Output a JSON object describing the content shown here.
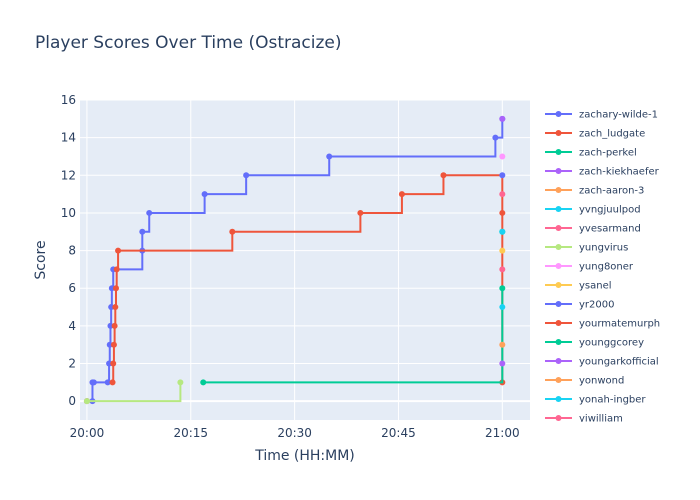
{
  "chart_data": {
    "type": "line",
    "line_shape": "step",
    "title": "Player Scores Over Time (Ostracize)",
    "xlabel": "Time (HH:MM)",
    "ylabel": "Score",
    "x_ticks": [
      "20:00",
      "20:15",
      "20:30",
      "20:45",
      "21:00"
    ],
    "x_tick_values": [
      0,
      15,
      30,
      45,
      60
    ],
    "xlim": [
      -1,
      64
    ],
    "y_ticks": [
      0,
      2,
      4,
      6,
      8,
      10,
      12,
      14,
      16
    ],
    "ylim": [
      -1,
      16
    ],
    "grid": true,
    "legend_position": "right",
    "series": [
      {
        "name": "zachary-wilde-1",
        "color": "#636efa",
        "x": [
          0,
          0.8,
          0.8,
          1.0,
          3.0,
          3.2,
          3.3,
          3.4,
          3.5,
          3.6,
          3.8,
          8.0,
          8.0,
          9.0,
          17.0,
          23.0,
          35.0,
          59.0,
          60.0
        ],
        "y": [
          0,
          0,
          1,
          1,
          1,
          2,
          3,
          4,
          5,
          6,
          7,
          8,
          9,
          10,
          11,
          12,
          13,
          14,
          15
        ]
      },
      {
        "name": "zach_ludgate",
        "color": "#ef553b",
        "x": [
          3.7,
          3.8,
          3.9,
          4.0,
          4.1,
          4.2,
          4.3,
          4.5,
          21.0,
          39.5,
          45.5,
          51.5,
          60.0
        ],
        "y": [
          1,
          2,
          3,
          4,
          5,
          6,
          7,
          8,
          9,
          10,
          11,
          12,
          1
        ]
      },
      {
        "name": "zach-perkel",
        "color": "#00cc96",
        "x": [
          60
        ],
        "y": [
          9
        ]
      },
      {
        "name": "zach-kiekhaefer",
        "color": "#ab63fa",
        "x": [
          60
        ],
        "y": [
          15
        ]
      },
      {
        "name": "zach-aaron-3",
        "color": "#ffa15a",
        "x": [
          0
        ],
        "y": [
          0
        ]
      },
      {
        "name": "yvngjuulpod",
        "color": "#19d3f3",
        "x": [
          60
        ],
        "y": [
          9
        ]
      },
      {
        "name": "yvesarmand",
        "color": "#ff6692",
        "x": [
          60
        ],
        "y": [
          11
        ]
      },
      {
        "name": "yungvirus",
        "color": "#b6e880",
        "x": [
          0,
          13.5
        ],
        "y": [
          0,
          1
        ]
      },
      {
        "name": "yung8oner",
        "color": "#ff97ff",
        "x": [
          60
        ],
        "y": [
          13
        ]
      },
      {
        "name": "ysanel",
        "color": "#fecb52",
        "x": [
          60
        ],
        "y": [
          8
        ]
      },
      {
        "name": "yr2000",
        "color": "#636efa",
        "x": [
          60
        ],
        "y": [
          12
        ]
      },
      {
        "name": "yourmatemurph",
        "color": "#ef553b",
        "x": [
          60
        ],
        "y": [
          10
        ]
      },
      {
        "name": "younggcorey",
        "color": "#00cc96",
        "x": [
          16.8,
          60
        ],
        "y": [
          1,
          6
        ]
      },
      {
        "name": "youngarkofficial",
        "color": "#ab63fa",
        "x": [
          60
        ],
        "y": [
          2
        ]
      },
      {
        "name": "yonwond",
        "color": "#ffa15a",
        "x": [
          60
        ],
        "y": [
          3
        ]
      },
      {
        "name": "yonah-ingber",
        "color": "#19d3f3",
        "x": [
          60
        ],
        "y": [
          5
        ]
      },
      {
        "name": "yiwilliam",
        "color": "#ff6692",
        "x": [
          60
        ],
        "y": [
          7
        ]
      }
    ]
  }
}
